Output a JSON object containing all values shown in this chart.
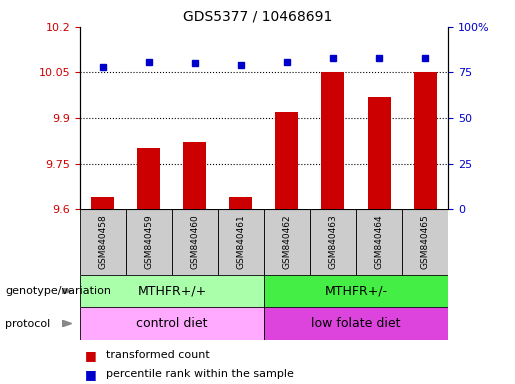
{
  "title": "GDS5377 / 10468691",
  "samples": [
    "GSM840458",
    "GSM840459",
    "GSM840460",
    "GSM840461",
    "GSM840462",
    "GSM840463",
    "GSM840464",
    "GSM840465"
  ],
  "transformed_count": [
    9.64,
    9.8,
    9.82,
    9.64,
    9.92,
    10.05,
    9.97,
    10.05
  ],
  "percentile_rank": [
    78,
    81,
    80,
    79,
    81,
    83,
    83,
    83
  ],
  "ylim_left": [
    9.6,
    10.2
  ],
  "ylim_right": [
    0,
    100
  ],
  "yticks_left": [
    9.6,
    9.75,
    9.9,
    10.05,
    10.2
  ],
  "ytick_labels_left": [
    "9.6",
    "9.75",
    "9.9",
    "10.05",
    "10.2"
  ],
  "yticks_right": [
    0,
    25,
    50,
    75,
    100
  ],
  "ytick_labels_right": [
    "0",
    "25",
    "50",
    "75",
    "100%"
  ],
  "hlines": [
    9.75,
    9.9,
    10.05
  ],
  "bar_color": "#cc0000",
  "dot_color": "#0000cc",
  "bar_bottom": 9.6,
  "genotype_groups": [
    {
      "label": "MTHFR+/+",
      "start": 0,
      "end": 4,
      "color": "#aaffaa"
    },
    {
      "label": "MTHFR+/-",
      "start": 4,
      "end": 8,
      "color": "#44ee44"
    }
  ],
  "protocol_groups": [
    {
      "label": "control diet",
      "start": 0,
      "end": 4,
      "color": "#ffaaff"
    },
    {
      "label": "low folate diet",
      "start": 4,
      "end": 8,
      "color": "#dd44dd"
    }
  ],
  "legend_red_label": "transformed count",
  "legend_blue_label": "percentile rank within the sample",
  "left_label_color": "#cc0000",
  "right_label_color": "#0000cc",
  "tick_area_bg": "#cccccc",
  "title_fontsize": 10,
  "tick_fontsize": 8,
  "sample_fontsize": 6.5,
  "group_fontsize": 9,
  "legend_fontsize": 8,
  "row_label_fontsize": 8
}
